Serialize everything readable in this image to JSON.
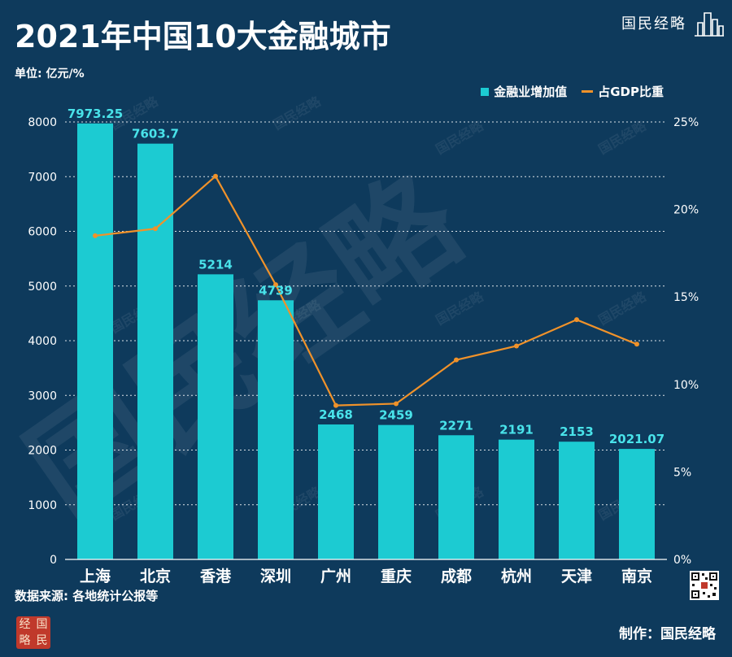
{
  "title": "2021年中国10大金融城市",
  "brand": {
    "name": "国民经略"
  },
  "unit": "单位: 亿元/%",
  "source": "数据来源: 各地统计公报等",
  "maker": "制作：国民经略",
  "seal": {
    "chars": [
      "经",
      "国",
      "略",
      "民"
    ]
  },
  "colors": {
    "bar": "#1ccbd2",
    "line": "#f0922a",
    "background": "#0e3a5c",
    "value_label": "#49e3ea"
  },
  "chart_data": {
    "type": "bar",
    "categories": [
      "上海",
      "北京",
      "香港",
      "深圳",
      "广州",
      "重庆",
      "成都",
      "杭州",
      "天津",
      "南京"
    ],
    "series": [
      {
        "name": "金融业增加值",
        "type": "bar",
        "axis": "left",
        "values": [
          7973.25,
          7603.7,
          5214,
          4739,
          2468,
          2459,
          2271,
          2191,
          2153,
          2021.07
        ],
        "labels": [
          "7973.25",
          "7603.7",
          "5214",
          "4739",
          "2468",
          "2459",
          "2271",
          "2191",
          "2153",
          "2021.07"
        ]
      },
      {
        "name": "占GDP比重",
        "type": "line",
        "axis": "right",
        "values": [
          18.5,
          18.9,
          21.9,
          15.7,
          8.8,
          8.9,
          11.4,
          12.2,
          13.7,
          12.3
        ]
      }
    ],
    "y_left": {
      "range": [
        0,
        8000
      ],
      "ticks": [
        "0",
        "1000",
        "2000",
        "3000",
        "4000",
        "5000",
        "6000",
        "7000",
        "8000"
      ]
    },
    "y_right": {
      "range": [
        0,
        25
      ],
      "ticks": [
        "0%",
        "5%",
        "10%",
        "15%",
        "20%",
        "25%"
      ]
    },
    "legend": {
      "position": "top-right",
      "entries": [
        "金融业增加值",
        "占GDP比重"
      ]
    },
    "grid": true
  }
}
